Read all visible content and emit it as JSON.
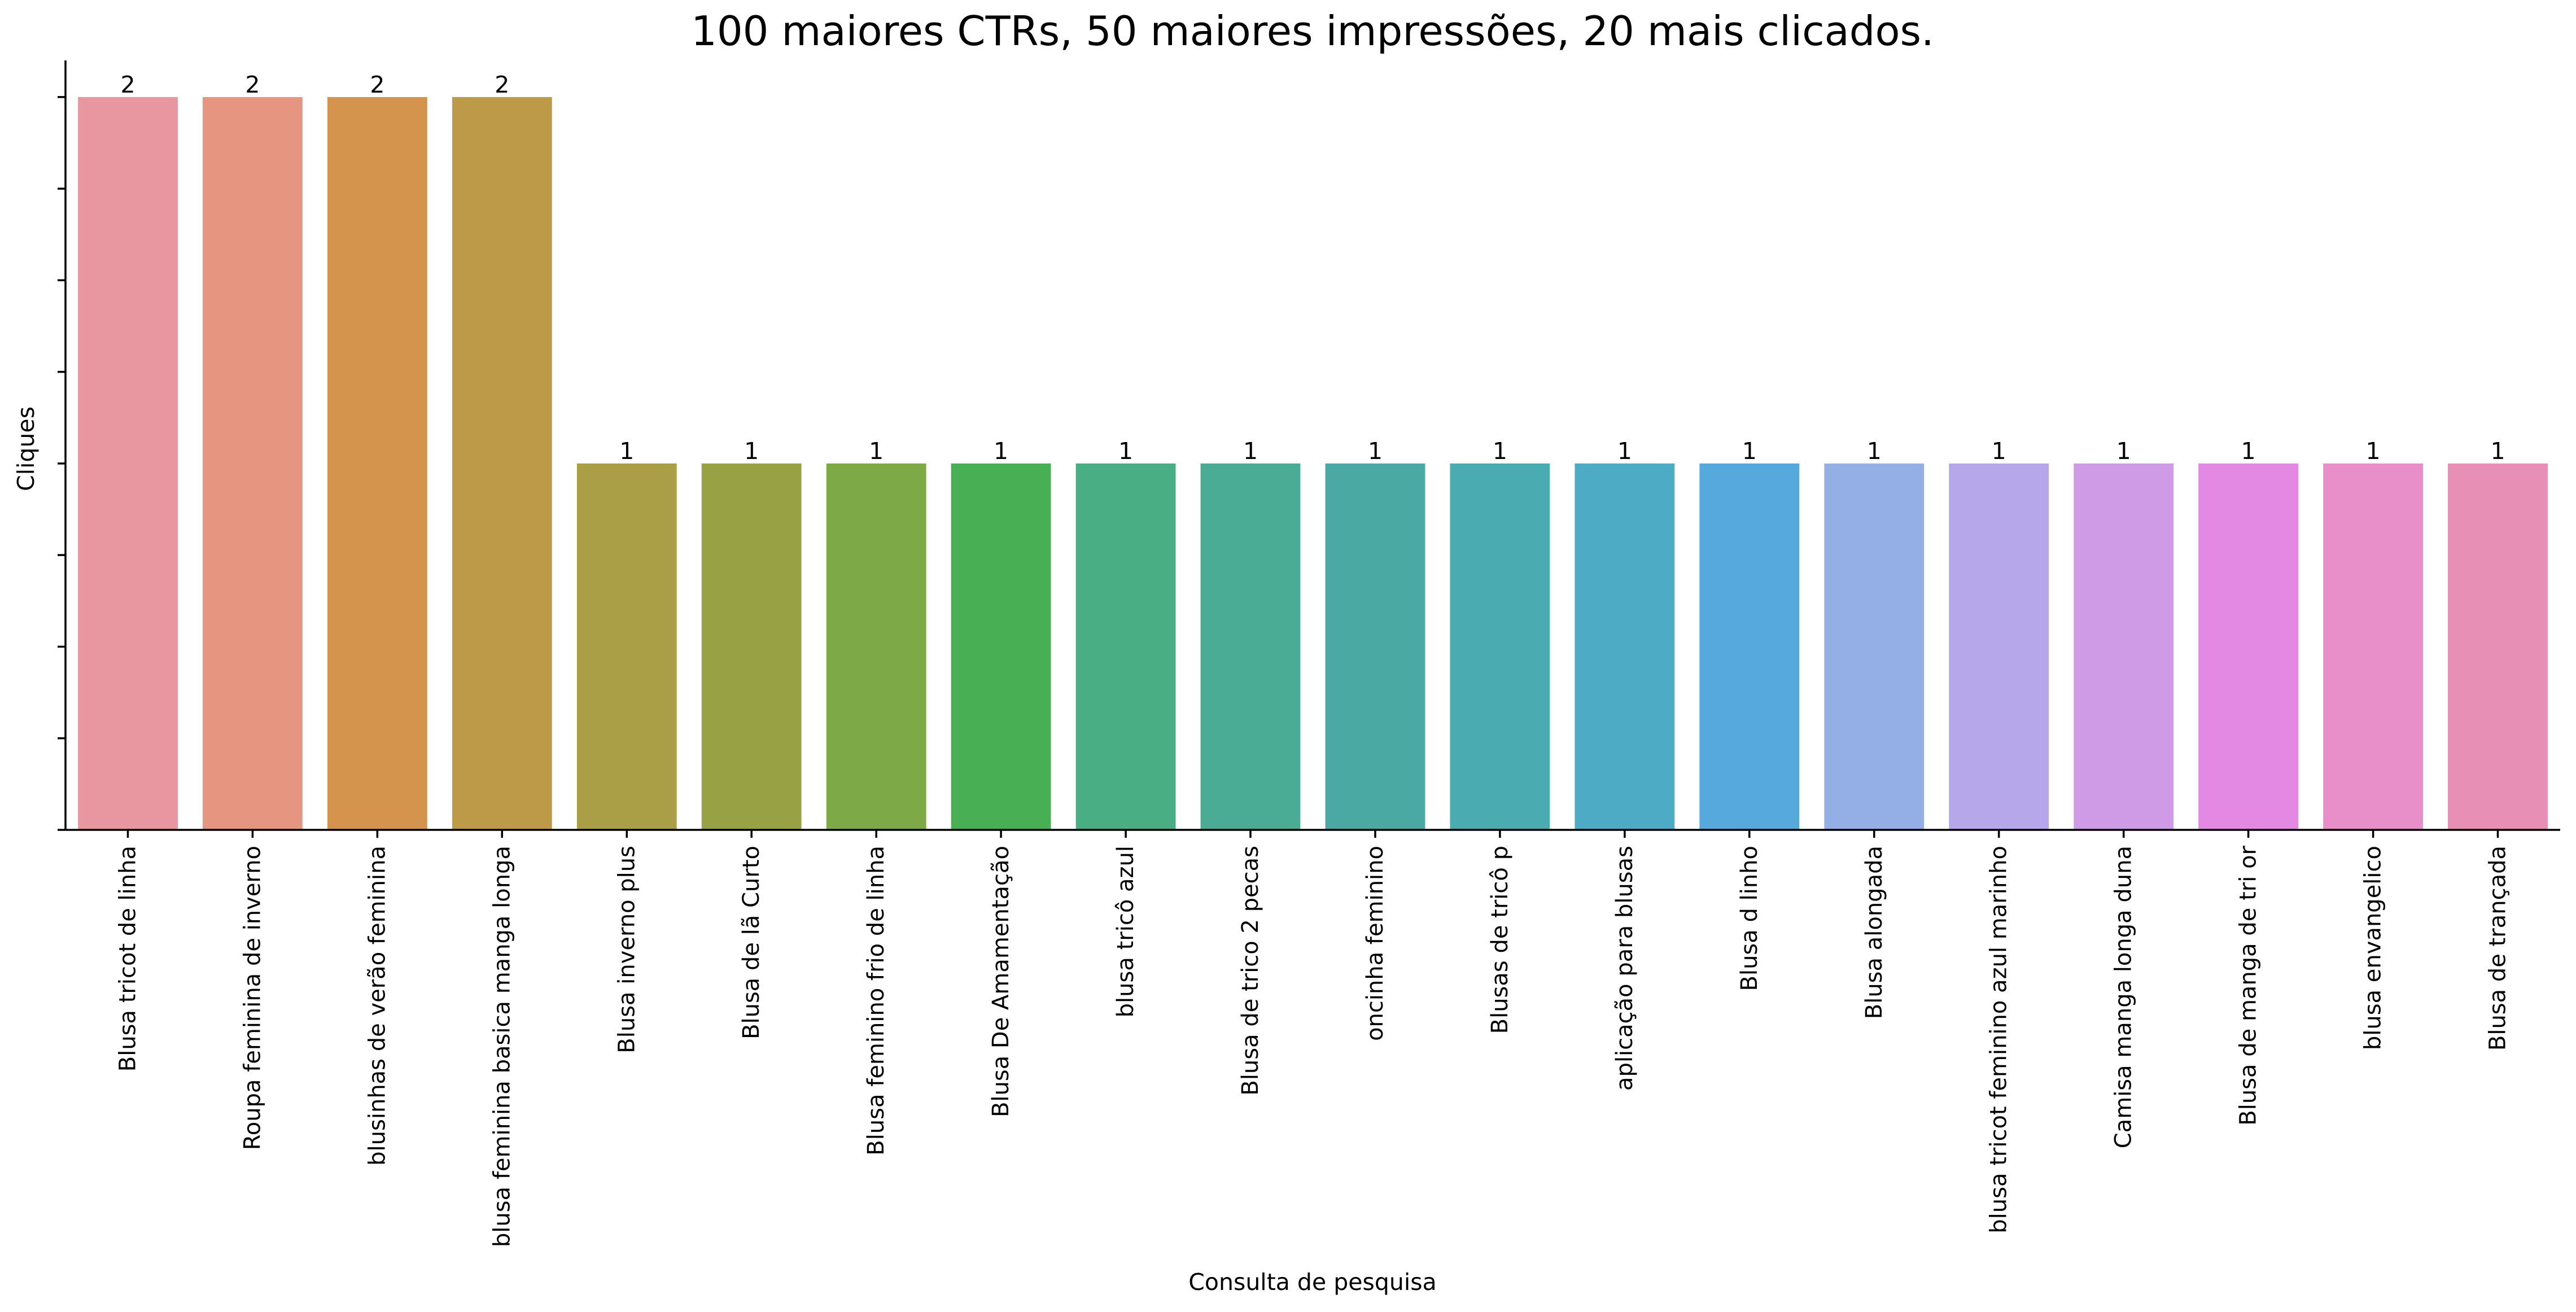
{
  "chart_data": {
    "type": "bar",
    "title": "100 maiores CTRs, 50 maiores impressões, 20 mais clicados.",
    "xlabel": "Consulta de pesquisa",
    "ylabel": "Cliques",
    "ylim": [
      0,
      2.1
    ],
    "y_tick_labels_visible": false,
    "y_ticks": [
      0,
      0.25,
      0.5,
      0.75,
      1.0,
      1.25,
      1.5,
      1.75,
      2.0
    ],
    "grid": false,
    "legend": "none",
    "categories": [
      "Blusa tricot de linha",
      "Roupa feminina de inverno",
      "blusinhas de verão feminina",
      "blusa feminina basica manga longa",
      "Blusa inverno plus",
      "Blusa  de lã  Curto",
      "Blusa feminino frio de linha",
      "Blusa De Amamentação",
      "blusa tricô azul",
      "Blusa de trico 2 pecas",
      "oncinha feminino",
      "Blusas de tricô p",
      "aplicação para blusas",
      "Blusa d linho",
      "Blusa alongada",
      "blusa tricot feminino azul marinho",
      "Camisa manga longa duna",
      "Blusa de manga de tri or",
      "blusa envangelico",
      "Blusa de trançada"
    ],
    "values": [
      2,
      2,
      2,
      2,
      1,
      1,
      1,
      1,
      1,
      1,
      1,
      1,
      1,
      1,
      1,
      1,
      1,
      1,
      1,
      1
    ],
    "data_labels": [
      "2",
      "2",
      "2",
      "2",
      "1",
      "1",
      "1",
      "1",
      "1",
      "1",
      "1",
      "1",
      "1",
      "1",
      "1",
      "1",
      "1",
      "1",
      "1",
      "1"
    ],
    "colors": [
      "#e8969f",
      "#e69580",
      "#d4944d",
      "#bd9a48",
      "#aa9f46",
      "#98a245",
      "#7ea947",
      "#49af55",
      "#49ae83",
      "#4aac95",
      "#4aaaa3",
      "#4aabb0",
      "#4dabc6",
      "#55a9dc",
      "#94aee6",
      "#b6a6ea",
      "#cf9ae6",
      "#e489e3",
      "#e88ec9",
      "#e78fb5"
    ]
  }
}
